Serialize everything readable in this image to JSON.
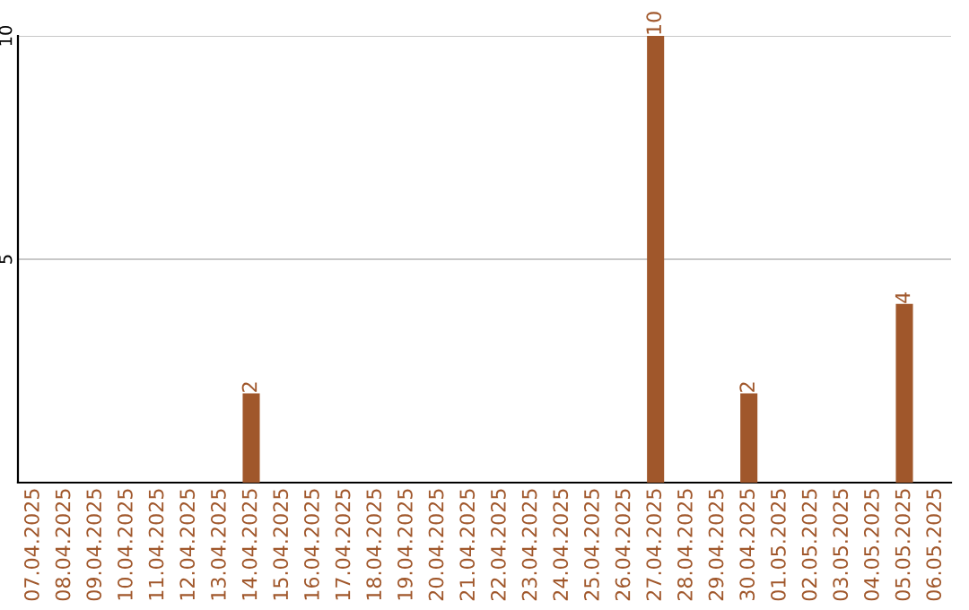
{
  "chart_data": {
    "type": "bar",
    "categories": [
      "07.04.2025",
      "08.04.2025",
      "09.04.2025",
      "10.04.2025",
      "11.04.2025",
      "12.04.2025",
      "13.04.2025",
      "14.04.2025",
      "15.04.2025",
      "16.04.2025",
      "17.04.2025",
      "18.04.2025",
      "19.04.2025",
      "20.04.2025",
      "21.04.2025",
      "22.04.2025",
      "23.04.2025",
      "24.04.2025",
      "25.04.2025",
      "26.04.2025",
      "27.04.2025",
      "28.04.2025",
      "29.04.2025",
      "30.04.2025",
      "01.05.2025",
      "02.05.2025",
      "03.05.2025",
      "04.05.2025",
      "05.05.2025",
      "06.05.2025"
    ],
    "values": [
      0,
      0,
      0,
      0,
      0,
      0,
      0,
      2,
      0,
      0,
      0,
      0,
      0,
      0,
      0,
      0,
      0,
      0,
      0,
      0,
      10,
      0,
      0,
      2,
      0,
      0,
      0,
      0,
      4,
      0
    ],
    "value_labels": [
      null,
      null,
      null,
      null,
      null,
      null,
      null,
      "2",
      null,
      null,
      null,
      null,
      null,
      null,
      null,
      null,
      null,
      null,
      null,
      null,
      "10",
      null,
      null,
      "2",
      null,
      null,
      null,
      null,
      "4",
      null
    ],
    "color": "#a0572b",
    "ylim": [
      0,
      10
    ],
    "yticks": [
      5,
      10
    ],
    "grid": "y"
  }
}
